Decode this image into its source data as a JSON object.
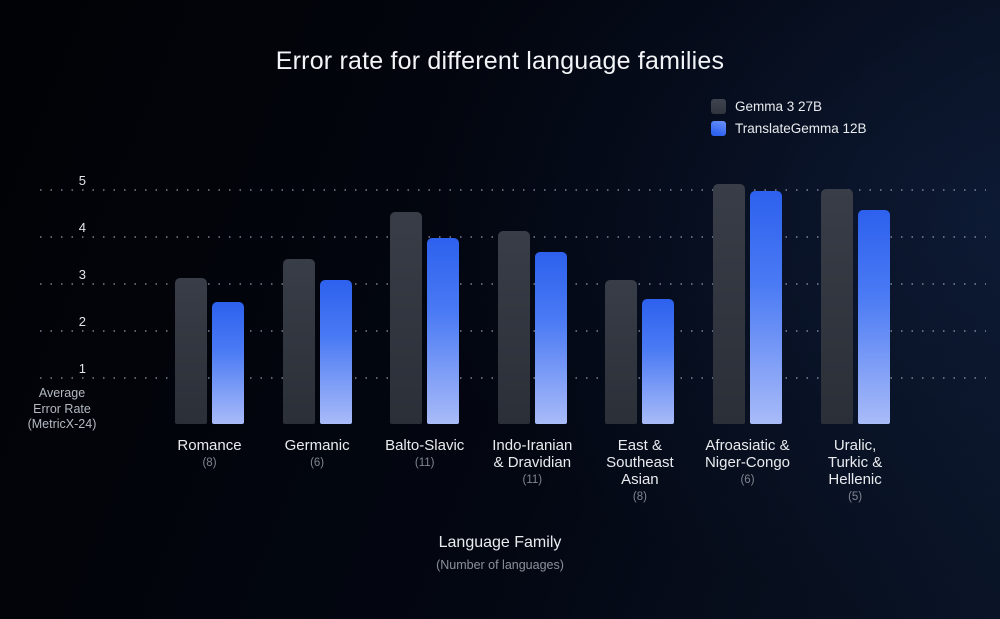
{
  "title": "Error rate for different language families",
  "legend": {
    "items": [
      {
        "label": "Gemma 3 27B",
        "color": "#343943"
      },
      {
        "label": "TranslateGemma 12B",
        "color": "#3f6ff4"
      }
    ],
    "position": "top-right"
  },
  "chart_data": {
    "type": "bar",
    "title": "Error rate for different language families",
    "xlabel": "Language Family",
    "xlabel_note": "(Number of languages)",
    "ylabel": "Average\nError Rate\n(MetricX-24)",
    "yticks": [
      1,
      2,
      3,
      4,
      5
    ],
    "ylim": [
      0,
      5.5
    ],
    "grid": "horizontal-dotted",
    "legend_position": "top-right",
    "categories": [
      {
        "label": "Romance",
        "count": "(8)"
      },
      {
        "label": "Germanic",
        "count": "(6)"
      },
      {
        "label": "Balto-Slavic",
        "count": "(11)"
      },
      {
        "label": "Indo-Iranian\n& Dravidian",
        "count": "(11)"
      },
      {
        "label": "East &\nSoutheast\nAsian",
        "count": "(8)"
      },
      {
        "label": "Afroasiatic &\nNiger-Congo",
        "count": "(6)"
      },
      {
        "label": "Uralic,\nTurkic &\nHellenic",
        "count": "(5)"
      }
    ],
    "series": [
      {
        "name": "Gemma 3 27B",
        "color": "#343943",
        "values": [
          3.1,
          3.5,
          4.5,
          4.1,
          3.05,
          5.1,
          5.0
        ]
      },
      {
        "name": "TranslateGemma 12B",
        "color_top": "#2d61ee",
        "color_bottom": "#a9bbf8",
        "values": [
          2.6,
          3.05,
          3.95,
          3.65,
          2.65,
          4.95,
          4.55
        ]
      }
    ]
  }
}
